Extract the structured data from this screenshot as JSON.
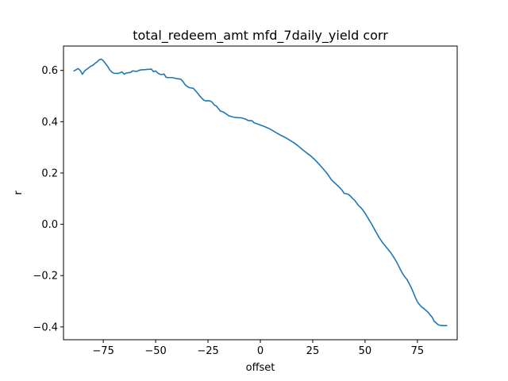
{
  "chart_data": {
    "type": "line",
    "title": "total_redeem_amt mfd_7daily_yield corr",
    "xlabel": "offset",
    "ylabel": "r",
    "xlim": [
      -94,
      94
    ],
    "ylim": [
      -0.45,
      0.695
    ],
    "xticks": [
      -75,
      -50,
      -25,
      0,
      25,
      50,
      75
    ],
    "xtick_labels": [
      "−75",
      "−50",
      "−25",
      "0",
      "25",
      "50",
      "75"
    ],
    "yticks": [
      -0.4,
      -0.2,
      0.0,
      0.2,
      0.4,
      0.6
    ],
    "ytick_labels": [
      "−0.4",
      "−0.2",
      "0.0",
      "0.2",
      "0.4",
      "0.6"
    ],
    "grid": false,
    "legend": "none",
    "line_color": "#1f77b4",
    "series": [
      {
        "x": [
          -89,
          -87,
          -86,
          -85,
          -84,
          -83,
          -82,
          -81,
          -80,
          -79,
          -78,
          -77,
          -76,
          -75,
          -74,
          -73,
          -72,
          -71,
          -70,
          -68,
          -66,
          -65,
          -64,
          -62,
          -61,
          -59,
          -58,
          -57,
          -55,
          -54,
          -52,
          -51,
          -50,
          -49,
          -48,
          -47,
          -46,
          -45,
          -44,
          -42,
          -40,
          -38,
          -37,
          -36,
          -35,
          -34,
          -32,
          -30,
          -29,
          -28,
          -27,
          -26,
          -25,
          -24,
          -23,
          -22,
          -21,
          -20,
          -19,
          -18,
          -17,
          -15,
          -13,
          -11,
          -9,
          -7,
          -6,
          -5,
          -4,
          -3,
          -2,
          -1,
          0,
          2,
          4,
          6,
          8,
          10,
          12,
          14,
          16,
          18,
          20,
          22,
          24,
          26,
          28,
          30,
          32,
          34,
          35,
          36,
          37,
          38,
          39,
          40,
          41,
          42,
          43,
          44,
          45,
          46,
          47,
          48,
          49,
          50,
          51,
          52,
          53,
          54,
          55,
          56,
          57,
          58,
          59,
          60,
          61,
          62,
          63,
          64,
          65,
          66,
          67,
          68,
          69,
          70,
          71,
          72,
          73,
          74,
          75,
          76,
          77,
          78,
          79,
          80,
          81,
          82,
          83,
          84,
          85,
          86,
          87,
          88,
          89
        ],
        "values": [
          0.598,
          0.607,
          0.6,
          0.585,
          0.597,
          0.604,
          0.61,
          0.616,
          0.62,
          0.627,
          0.633,
          0.641,
          0.644,
          0.638,
          0.627,
          0.617,
          0.603,
          0.594,
          0.589,
          0.588,
          0.594,
          0.585,
          0.59,
          0.592,
          0.598,
          0.596,
          0.6,
          0.602,
          0.603,
          0.604,
          0.605,
          0.595,
          0.598,
          0.59,
          0.585,
          0.584,
          0.586,
          0.573,
          0.572,
          0.572,
          0.568,
          0.566,
          0.557,
          0.545,
          0.538,
          0.533,
          0.53,
          0.512,
          0.501,
          0.492,
          0.484,
          0.481,
          0.482,
          0.481,
          0.476,
          0.465,
          0.461,
          0.451,
          0.441,
          0.439,
          0.434,
          0.423,
          0.418,
          0.416,
          0.415,
          0.41,
          0.405,
          0.404,
          0.404,
          0.396,
          0.393,
          0.39,
          0.387,
          0.381,
          0.374,
          0.365,
          0.355,
          0.346,
          0.338,
          0.328,
          0.318,
          0.306,
          0.292,
          0.279,
          0.267,
          0.252,
          0.235,
          0.216,
          0.197,
          0.173,
          0.165,
          0.158,
          0.15,
          0.142,
          0.133,
          0.121,
          0.119,
          0.117,
          0.11,
          0.101,
          0.094,
          0.083,
          0.072,
          0.065,
          0.055,
          0.043,
          0.03,
          0.016,
          0.003,
          -0.012,
          -0.027,
          -0.041,
          -0.055,
          -0.067,
          -0.078,
          -0.088,
          -0.098,
          -0.108,
          -0.12,
          -0.132,
          -0.146,
          -0.162,
          -0.178,
          -0.193,
          -0.205,
          -0.215,
          -0.23,
          -0.246,
          -0.265,
          -0.285,
          -0.302,
          -0.313,
          -0.322,
          -0.328,
          -0.335,
          -0.342,
          -0.352,
          -0.362,
          -0.378,
          -0.385,
          -0.392,
          -0.394,
          -0.395,
          -0.395,
          -0.395
        ]
      }
    ]
  }
}
